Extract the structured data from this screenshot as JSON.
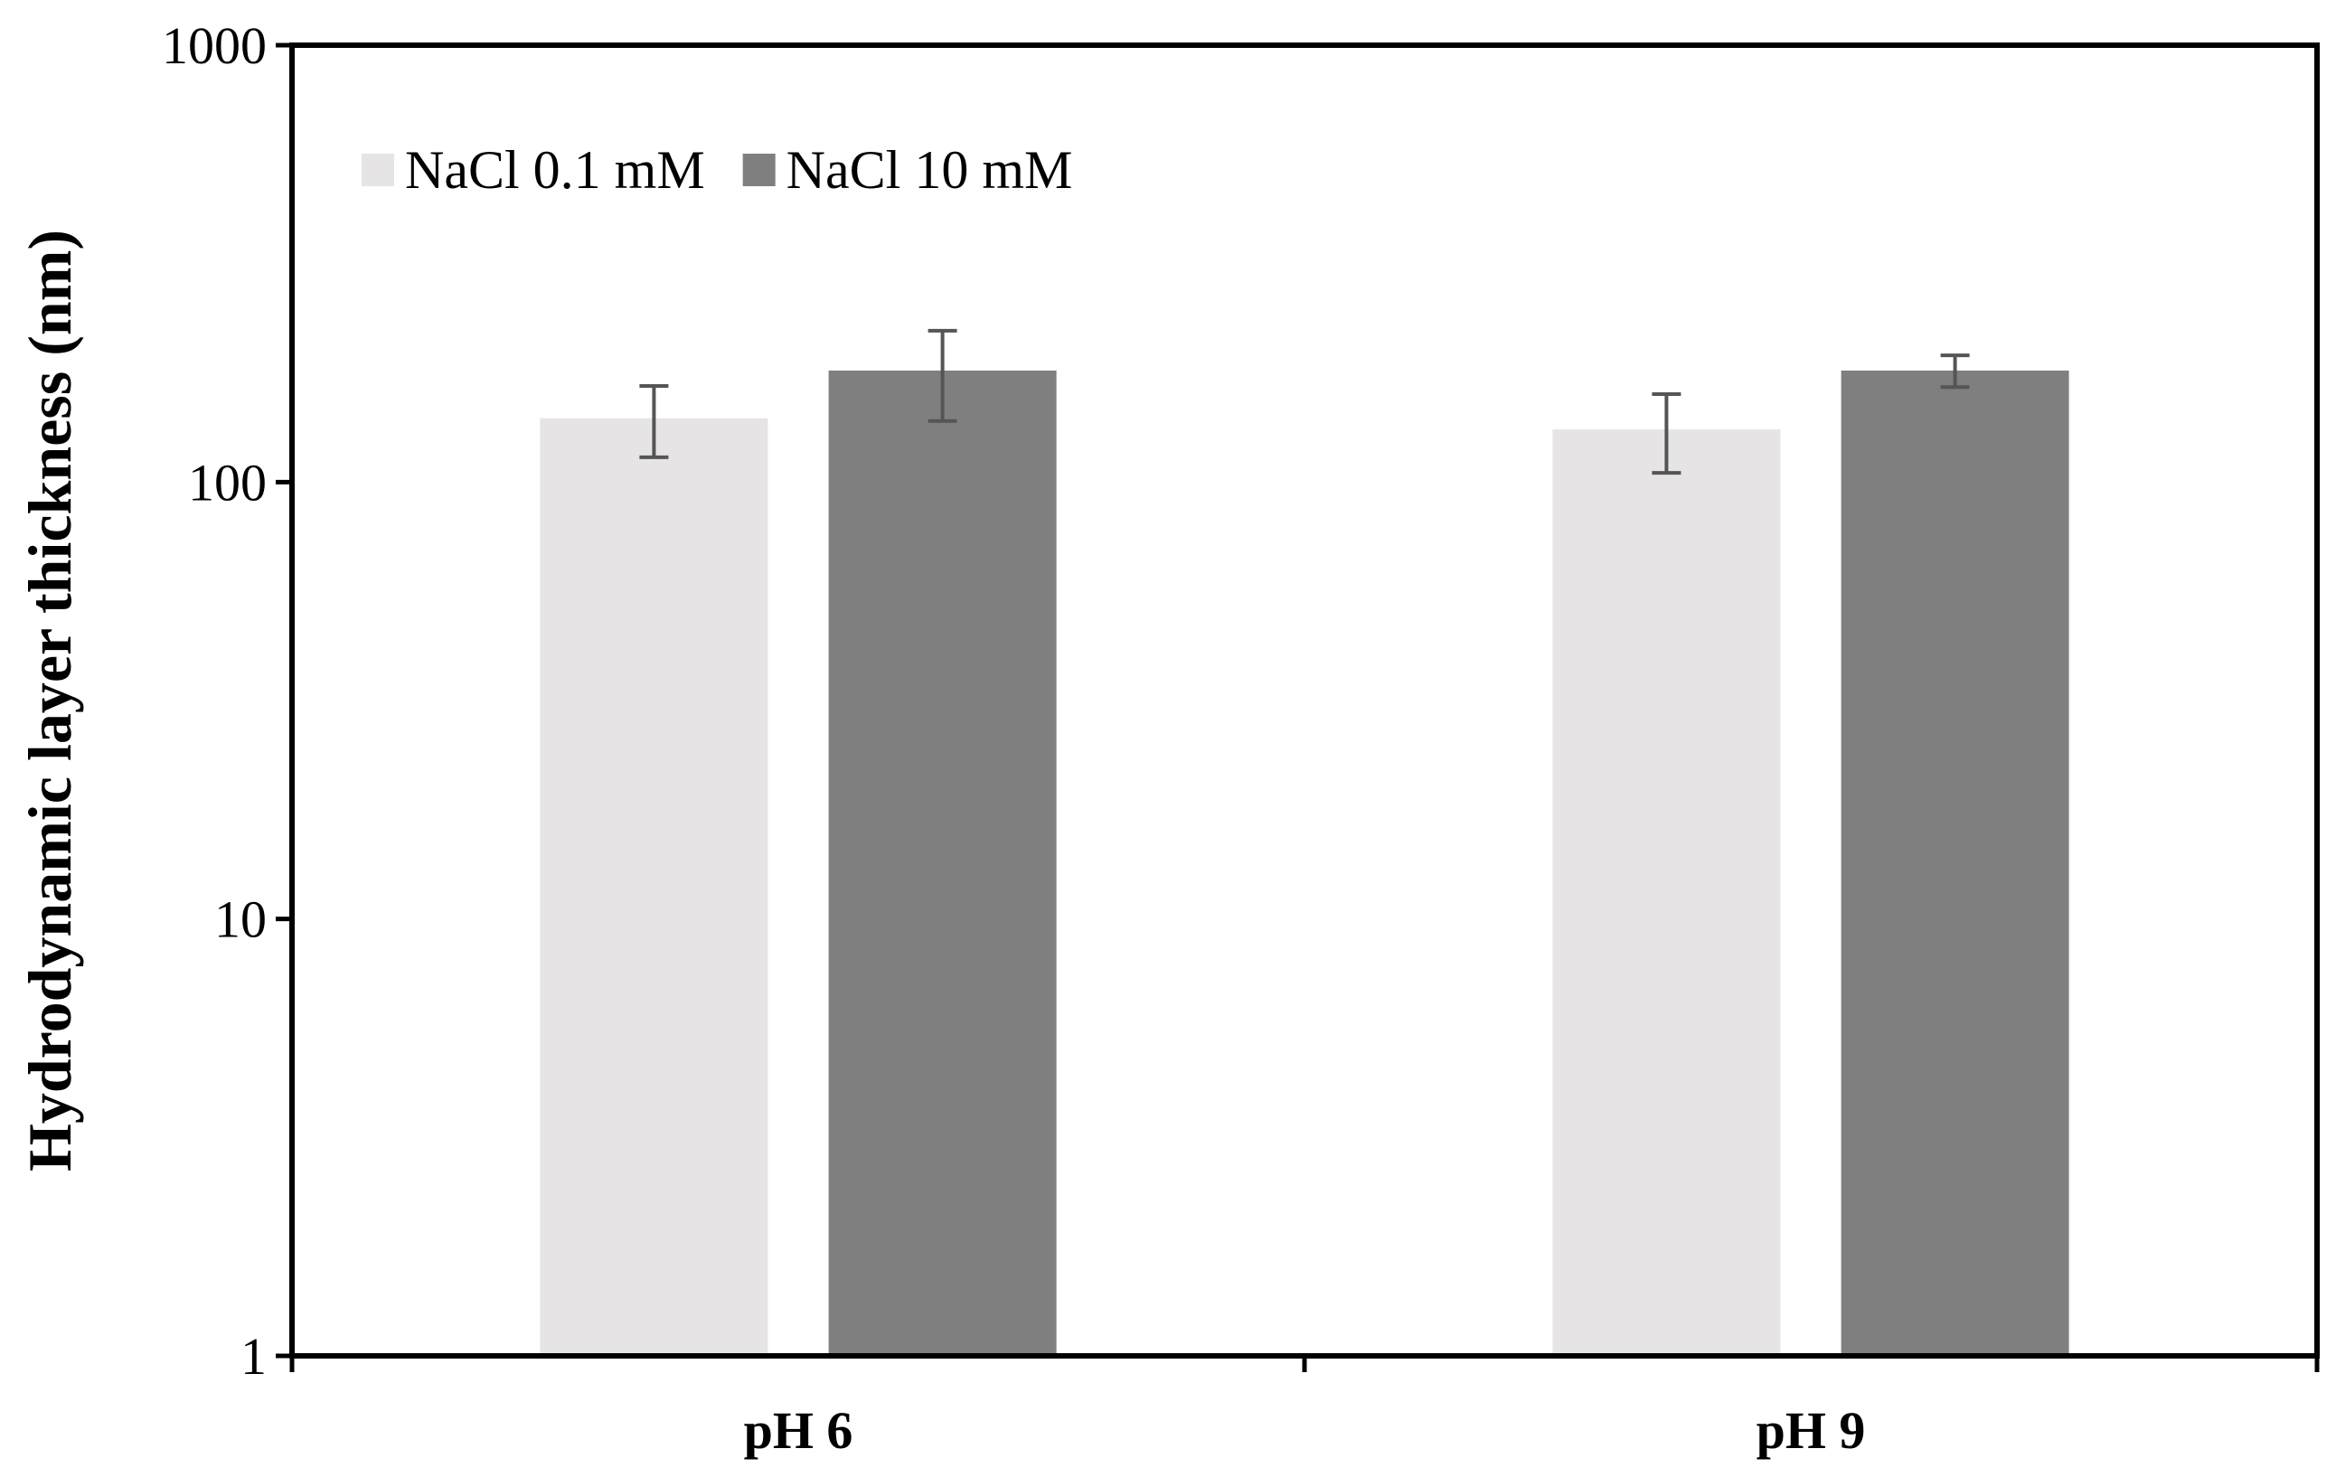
{
  "chart_data": {
    "type": "bar",
    "categories": [
      "pH 6",
      "pH 9"
    ],
    "series": [
      {
        "name": "NaCl 0.1 mM",
        "values": [
          140,
          132
        ],
        "error": [
          26,
          27
        ],
        "color": "#e6e4e5"
      },
      {
        "name": "NaCl 10 mM",
        "values": [
          180,
          180
        ],
        "error": [
          42,
          15
        ],
        "color": "#7f7f7f"
      }
    ],
    "ylabel": "Hydrodynamic layer thickness (nm)",
    "xlabel": "",
    "yscale": "log",
    "ylim": [
      1,
      1000
    ],
    "yticks": [
      "1",
      "10",
      "100",
      "1000"
    ],
    "grid": false,
    "legend_position": "top-left"
  }
}
